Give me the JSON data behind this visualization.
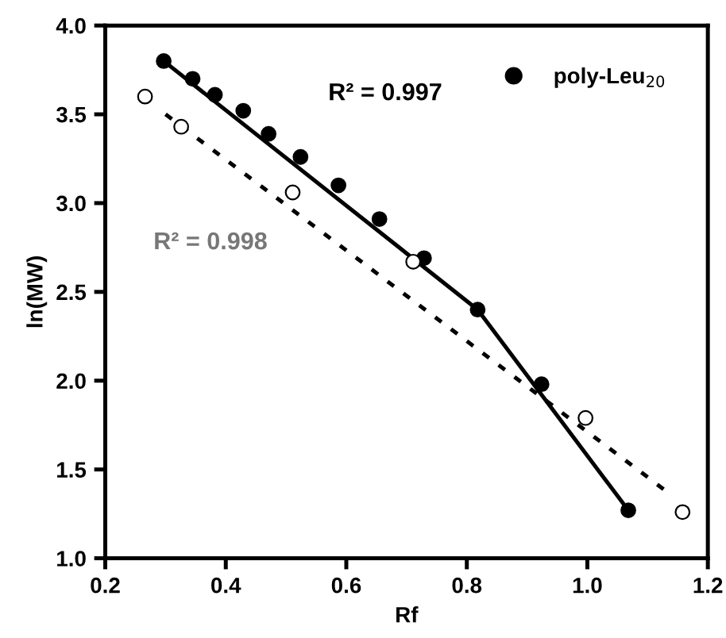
{
  "chart_data": {
    "type": "scatter",
    "xlabel": "Rf",
    "ylabel": "ln(MW)",
    "series": [
      {
        "name": "poly-Leu$_{20}$",
        "marker": "circle",
        "color": "#000000",
        "x": [
          0.297,
          0.345,
          0.382,
          0.429,
          0.471,
          0.524,
          0.587,
          0.655,
          0.729,
          0.818,
          0.924,
          1.068
        ],
        "values": [
          3.8,
          3.7,
          3.61,
          3.52,
          3.39,
          3.26,
          3.1,
          2.91,
          2.69,
          2.4,
          1.98,
          1.27
        ]
      },
      {
        "marker": "circle",
        "color": "#ffffff",
        "x": [
          0.266,
          0.326,
          0.511,
          0.711,
          0.997,
          1.158
        ],
        "values": [
          3.6,
          3.43,
          3.06,
          2.67,
          1.79,
          1.26
        ]
      },
      {
        "type": "line",
        "color": "#000000",
        "line_style": "solid",
        "x": [
          0.297,
          0.818,
          1.068
        ],
        "values": [
          3.8,
          2.4,
          1.27
        ]
      },
      {
        "type": "line",
        "color": "#000000",
        "line_style": "dashed",
        "x": [
          0.3,
          1.134
        ],
        "values": [
          3.5,
          1.37
        ]
      }
    ],
    "annotations": [
      "R² = 0.997",
      "R² = 0.998"
    ],
    "xlim": [
      0.2,
      1.2
    ],
    "xticks": [
      0.2,
      0.4,
      0.6,
      0.8,
      {
        "value": 1,
        "label": "1.0"
      },
      1.2
    ],
    "ylim": [
      1.0,
      4.0
    ],
    "yticks": [
      {
        "value": 1,
        "label": "1.0"
      },
      1.5,
      {
        "value": 2,
        "label": "2.0"
      },
      2.5,
      {
        "value": 3,
        "label": "3.0"
      },
      3.5,
      {
        "value": 4,
        "label": "4.0"
      }
    ],
    "grid": false,
    "legend": "top right"
  }
}
